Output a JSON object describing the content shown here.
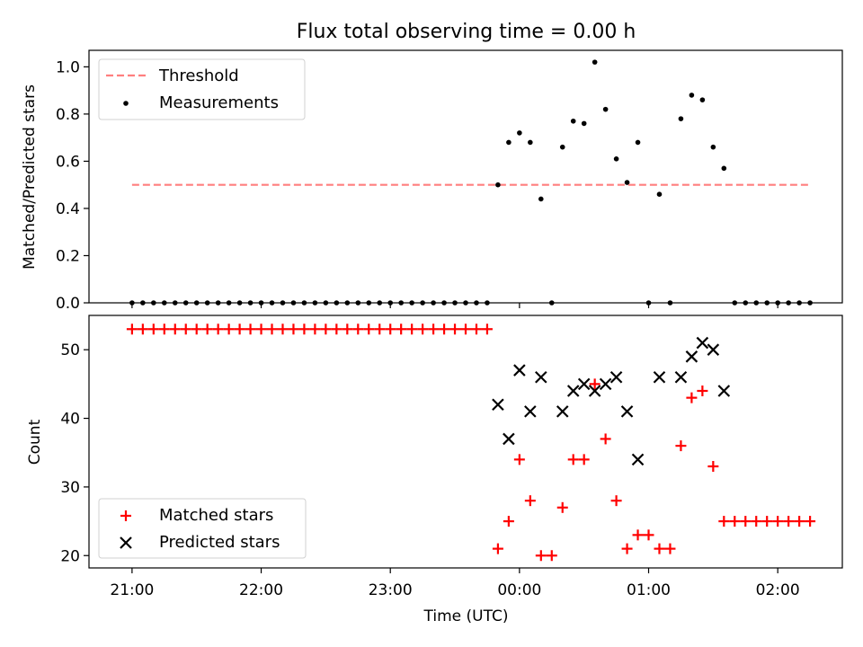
{
  "chart_data": [
    {
      "type": "scatter",
      "title": "Flux total observing time = 0.00 h",
      "xlabel": "",
      "ylabel": "Matched/Predicted stars",
      "ylim": [
        0.0,
        1.07
      ],
      "yticks": [
        "0.0",
        "0.2",
        "0.4",
        "0.6",
        "0.8",
        "1.0"
      ],
      "xlim_minutes_after_2100": [
        -20,
        330
      ],
      "legend_position": "top-left",
      "threshold": {
        "name": "Threshold",
        "value": 0.5,
        "x_start": "21:00",
        "x_end": "02:15",
        "color": "#ff7f7f",
        "style": "dashed"
      },
      "series": [
        {
          "name": "Measurements",
          "color": "#000000",
          "marker": "dot",
          "points": [
            [
              "21:00",
              0.0
            ],
            [
              "21:05",
              0.0
            ],
            [
              "21:10",
              0.0
            ],
            [
              "21:15",
              0.0
            ],
            [
              "21:20",
              0.0
            ],
            [
              "21:25",
              0.0
            ],
            [
              "21:30",
              0.0
            ],
            [
              "21:35",
              0.0
            ],
            [
              "21:40",
              0.0
            ],
            [
              "21:45",
              0.0
            ],
            [
              "21:50",
              0.0
            ],
            [
              "21:55",
              0.0
            ],
            [
              "22:00",
              0.0
            ],
            [
              "22:05",
              0.0
            ],
            [
              "22:10",
              0.0
            ],
            [
              "22:15",
              0.0
            ],
            [
              "22:20",
              0.0
            ],
            [
              "22:25",
              0.0
            ],
            [
              "22:30",
              0.0
            ],
            [
              "22:35",
              0.0
            ],
            [
              "22:40",
              0.0
            ],
            [
              "22:45",
              0.0
            ],
            [
              "22:50",
              0.0
            ],
            [
              "22:55",
              0.0
            ],
            [
              "23:00",
              0.0
            ],
            [
              "23:05",
              0.0
            ],
            [
              "23:10",
              0.0
            ],
            [
              "23:15",
              0.0
            ],
            [
              "23:20",
              0.0
            ],
            [
              "23:25",
              0.0
            ],
            [
              "23:30",
              0.0
            ],
            [
              "23:35",
              0.0
            ],
            [
              "23:40",
              0.0
            ],
            [
              "23:45",
              0.0
            ],
            [
              "23:50",
              0.5
            ],
            [
              "23:55",
              0.68
            ],
            [
              "00:00",
              0.72
            ],
            [
              "00:05",
              0.68
            ],
            [
              "00:10",
              0.44
            ],
            [
              "00:15",
              0.0
            ],
            [
              "00:20",
              0.66
            ],
            [
              "00:25",
              0.77
            ],
            [
              "00:30",
              0.76
            ],
            [
              "00:35",
              1.02
            ],
            [
              "00:40",
              0.82
            ],
            [
              "00:45",
              0.61
            ],
            [
              "00:50",
              0.51
            ],
            [
              "00:55",
              0.68
            ],
            [
              "01:00",
              0.0
            ],
            [
              "01:05",
              0.46
            ],
            [
              "01:10",
              0.0
            ],
            [
              "01:15",
              0.78
            ],
            [
              "01:20",
              0.88
            ],
            [
              "01:25",
              0.86
            ],
            [
              "01:30",
              0.66
            ],
            [
              "01:35",
              0.57
            ],
            [
              "01:40",
              0.0
            ],
            [
              "01:45",
              0.0
            ],
            [
              "01:50",
              0.0
            ],
            [
              "01:55",
              0.0
            ],
            [
              "02:00",
              0.0
            ],
            [
              "02:05",
              0.0
            ],
            [
              "02:10",
              0.0
            ],
            [
              "02:15",
              0.0
            ]
          ]
        }
      ]
    },
    {
      "type": "scatter",
      "title": "",
      "xlabel": "Time (UTC)",
      "ylabel": "Count",
      "ylim": [
        18.2,
        55.0
      ],
      "yticks": [
        "20",
        "30",
        "40",
        "50"
      ],
      "xticks": [
        "21:00",
        "22:00",
        "23:00",
        "00:00",
        "01:00",
        "02:00"
      ],
      "xlim_minutes_after_2100": [
        -20,
        330
      ],
      "legend_position": "bottom-left",
      "series": [
        {
          "name": "Matched stars",
          "color": "#ff0000",
          "marker": "plus",
          "points": [
            [
              "21:00",
              53
            ],
            [
              "21:05",
              53
            ],
            [
              "21:10",
              53
            ],
            [
              "21:15",
              53
            ],
            [
              "21:20",
              53
            ],
            [
              "21:25",
              53
            ],
            [
              "21:30",
              53
            ],
            [
              "21:35",
              53
            ],
            [
              "21:40",
              53
            ],
            [
              "21:45",
              53
            ],
            [
              "21:50",
              53
            ],
            [
              "21:55",
              53
            ],
            [
              "22:00",
              53
            ],
            [
              "22:05",
              53
            ],
            [
              "22:10",
              53
            ],
            [
              "22:15",
              53
            ],
            [
              "22:20",
              53
            ],
            [
              "22:25",
              53
            ],
            [
              "22:30",
              53
            ],
            [
              "22:35",
              53
            ],
            [
              "22:40",
              53
            ],
            [
              "22:45",
              53
            ],
            [
              "22:50",
              53
            ],
            [
              "22:55",
              53
            ],
            [
              "23:00",
              53
            ],
            [
              "23:05",
              53
            ],
            [
              "23:10",
              53
            ],
            [
              "23:15",
              53
            ],
            [
              "23:20",
              53
            ],
            [
              "23:25",
              53
            ],
            [
              "23:30",
              53
            ],
            [
              "23:35",
              53
            ],
            [
              "23:40",
              53
            ],
            [
              "23:45",
              53
            ],
            [
              "23:50",
              21
            ],
            [
              "23:55",
              25
            ],
            [
              "00:00",
              34
            ],
            [
              "00:05",
              28
            ],
            [
              "00:10",
              20
            ],
            [
              "00:15",
              20
            ],
            [
              "00:20",
              27
            ],
            [
              "00:25",
              34
            ],
            [
              "00:30",
              34
            ],
            [
              "00:35",
              45
            ],
            [
              "00:40",
              37
            ],
            [
              "00:45",
              28
            ],
            [
              "00:50",
              21
            ],
            [
              "00:55",
              23
            ],
            [
              "01:00",
              23
            ],
            [
              "01:05",
              21
            ],
            [
              "01:10",
              21
            ],
            [
              "01:15",
              36
            ],
            [
              "01:20",
              43
            ],
            [
              "01:25",
              44
            ],
            [
              "01:30",
              33
            ],
            [
              "01:35",
              25
            ],
            [
              "01:40",
              25
            ],
            [
              "01:45",
              25
            ],
            [
              "01:50",
              25
            ],
            [
              "01:55",
              25
            ],
            [
              "02:00",
              25
            ],
            [
              "02:05",
              25
            ],
            [
              "02:10",
              25
            ],
            [
              "02:15",
              25
            ]
          ]
        },
        {
          "name": "Predicted stars",
          "color": "#000000",
          "marker": "x",
          "points": [
            [
              "23:50",
              42
            ],
            [
              "23:55",
              37
            ],
            [
              "00:00",
              47
            ],
            [
              "00:05",
              41
            ],
            [
              "00:10",
              46
            ],
            [
              "00:20",
              41
            ],
            [
              "00:25",
              44
            ],
            [
              "00:30",
              45
            ],
            [
              "00:35",
              44
            ],
            [
              "00:40",
              45
            ],
            [
              "00:45",
              46
            ],
            [
              "00:50",
              41
            ],
            [
              "00:55",
              34
            ],
            [
              "01:05",
              46
            ],
            [
              "01:15",
              46
            ],
            [
              "01:20",
              49
            ],
            [
              "01:25",
              51
            ],
            [
              "01:30",
              50
            ],
            [
              "01:35",
              44
            ]
          ]
        }
      ]
    }
  ]
}
